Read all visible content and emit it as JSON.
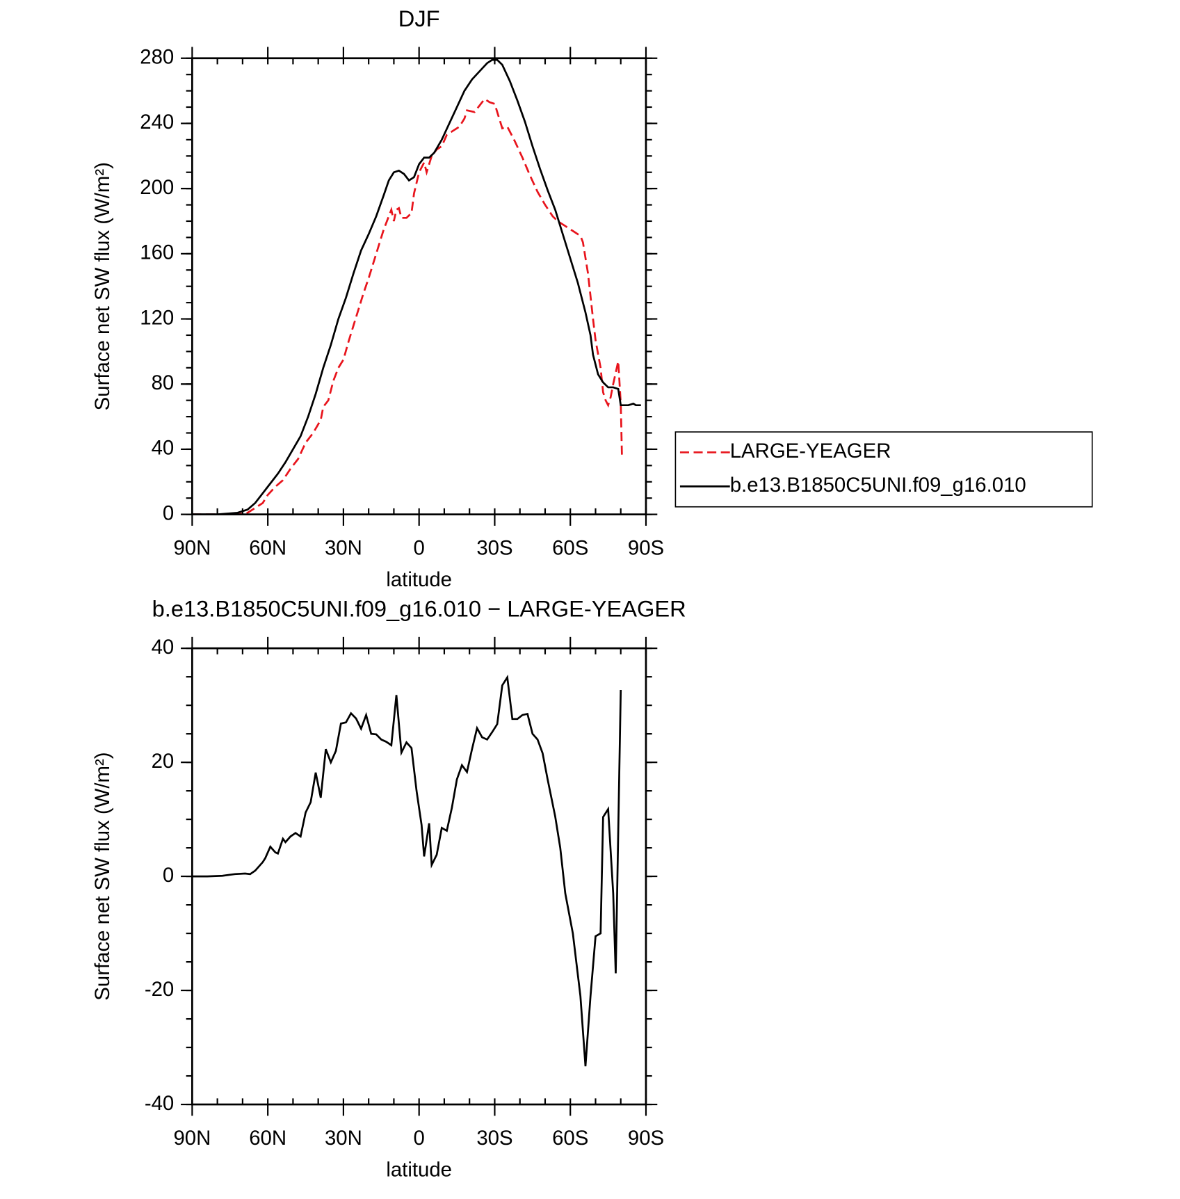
{
  "chart_data": [
    {
      "type": "line",
      "title": "DJF",
      "xlabel": "latitude",
      "ylabel": "Surface net SW flux (W/m²)",
      "xlim": [
        90,
        -90
      ],
      "xticks": [
        {
          "value": 90,
          "label": "90N"
        },
        {
          "value": 60,
          "label": "60N"
        },
        {
          "value": 30,
          "label": "30N"
        },
        0,
        {
          "value": -30,
          "label": "30S"
        },
        {
          "value": -60,
          "label": "60S"
        },
        {
          "value": -90,
          "label": "90S"
        }
      ],
      "ylim": [
        0,
        280
      ],
      "yticks": [
        0,
        40,
        80,
        120,
        160,
        200,
        240,
        280
      ],
      "legend": "outside right",
      "series": [
        {
          "name": "LARGE-YEAGER",
          "color": "#e8141c",
          "linestyle": "dashed",
          "x": [
            90,
            80,
            72,
            68,
            65,
            62,
            60,
            57,
            54,
            51,
            48,
            45,
            42,
            39,
            38,
            36,
            34,
            32,
            30,
            28,
            26,
            24,
            22,
            20,
            18,
            16,
            14,
            12,
            11,
            10,
            9,
            8,
            7,
            5,
            3,
            2,
            0,
            -2,
            -3,
            -5,
            -7,
            -9,
            -11,
            -13,
            -16,
            -18,
            -19,
            -22,
            -24,
            -26,
            -28,
            -30,
            -32,
            -33,
            -35,
            -38,
            -41,
            -44,
            -47,
            -50,
            -53,
            -55,
            -58,
            -61,
            -64,
            -65,
            -67,
            -69,
            -70,
            -72,
            -73,
            -74,
            -75,
            -76,
            -77,
            -78,
            -79,
            -80,
            -80.5
          ],
          "values": [
            0,
            0,
            0,
            1,
            4,
            7,
            12,
            17,
            21,
            28,
            34,
            44,
            50,
            58,
            66,
            70,
            82,
            90,
            95,
            106,
            116,
            126,
            136,
            145,
            155,
            165,
            175,
            183,
            187,
            180,
            187,
            188,
            182,
            182,
            185,
            197,
            210,
            216,
            210,
            220,
            224,
            226,
            233,
            235,
            238,
            243,
            248,
            247,
            251,
            255,
            253,
            252,
            242,
            237,
            238,
            229,
            219,
            208,
            198,
            190,
            183,
            180,
            177,
            174,
            171,
            167,
            148,
            120,
            107,
            90,
            75,
            70,
            67,
            72,
            80,
            87,
            94,
            68,
            34
          ]
        },
        {
          "name": "b.e13.B1850C5UNI.f09_g16.010",
          "color": "#000000",
          "linestyle": "solid",
          "x": [
            90,
            80,
            72,
            68,
            65,
            62,
            59,
            56,
            53,
            50,
            47,
            44,
            41,
            38,
            35,
            32,
            29,
            26,
            23,
            20,
            17,
            14,
            12,
            10,
            8,
            6,
            4,
            2,
            0,
            -2,
            -4,
            -6,
            -9,
            -12,
            -15,
            -18,
            -21,
            -24,
            -27,
            -29,
            -31,
            -33,
            -36,
            -39,
            -42,
            -45,
            -48,
            -51,
            -54,
            -57,
            -60,
            -63,
            -66,
            -68,
            -69,
            -71,
            -73,
            -75,
            -77,
            -79,
            -80,
            -83,
            -85,
            -86,
            -88
          ],
          "values": [
            0,
            0,
            1,
            3,
            7,
            13,
            19,
            25,
            32,
            40,
            48,
            60,
            74,
            90,
            104,
            120,
            133,
            148,
            162,
            172,
            183,
            196,
            205,
            210,
            211,
            209,
            205,
            207,
            215,
            219,
            219,
            222,
            230,
            240,
            250,
            260,
            267,
            272,
            277,
            279,
            279,
            276,
            266,
            254,
            241,
            226,
            212,
            199,
            187,
            172,
            157,
            142,
            124,
            110,
            98,
            86,
            81,
            78,
            78,
            77,
            67,
            67,
            68,
            67,
            67
          ]
        }
      ]
    },
    {
      "type": "line",
      "title": "b.e13.B1850C5UNI.f09_g16.010 − LARGE-YEAGER",
      "xlabel": "latitude",
      "ylabel": "Surface net SW flux (W/m²)",
      "xlim": [
        90,
        -90
      ],
      "xticks": [
        {
          "value": 90,
          "label": "90N"
        },
        {
          "value": 60,
          "label": "60N"
        },
        {
          "value": 30,
          "label": "30N"
        },
        0,
        {
          "value": -30,
          "label": "30S"
        },
        {
          "value": -60,
          "label": "60S"
        },
        {
          "value": -90,
          "label": "90S"
        }
      ],
      "ylim": [
        -40,
        40
      ],
      "yticks": [
        -40,
        -20,
        0,
        20,
        40
      ],
      "series": [
        {
          "color": "#000000",
          "linestyle": "solid",
          "x": [
            90,
            84,
            78,
            73,
            69,
            67,
            65,
            62,
            61,
            59,
            57,
            56,
            54,
            53,
            51,
            49,
            47,
            45,
            43,
            41,
            39,
            37,
            35,
            33,
            31,
            29,
            27,
            25,
            23,
            21,
            19,
            17,
            15,
            13,
            11,
            9,
            7,
            5,
            3,
            1,
            -1,
            -2,
            -4,
            -5,
            -7,
            -9,
            -11,
            -13,
            -15,
            -17,
            -19,
            -21,
            -23,
            -25,
            -27,
            -29,
            -31,
            -33,
            -35,
            -37,
            -39,
            -41,
            -43,
            -45,
            -47,
            -49,
            -51,
            -54,
            -56,
            -58,
            -61,
            -64,
            -66,
            -68,
            -70,
            -72,
            -73,
            -75,
            -77,
            -78,
            -80
          ],
          "values": [
            0,
            0,
            0.1,
            0.4,
            0.5,
            0.4,
            1,
            2.5,
            3.2,
            5.2,
            4.2,
            4,
            6.6,
            6,
            7,
            7.6,
            7,
            11.2,
            13,
            18.2,
            13.8,
            22.3,
            20,
            22,
            26.8,
            27,
            28.6,
            27.7,
            25.9,
            28.3,
            25,
            24.9,
            24,
            23.6,
            23,
            31.8,
            21.7,
            23.5,
            22.5,
            15,
            9,
            3.5,
            9.3,
            2,
            3.8,
            8.5,
            8,
            12,
            17,
            19.5,
            18.3,
            22.3,
            26,
            24.4,
            24,
            25.3,
            26.7,
            33.5,
            34.9,
            27.6,
            27.6,
            28.3,
            28.5,
            25,
            24,
            21.6,
            17,
            10.5,
            5,
            -3,
            -10,
            -21,
            -33.3,
            -21,
            -10.5,
            -10,
            10.4,
            11.8,
            -3,
            -17,
            32.7
          ]
        }
      ]
    }
  ]
}
